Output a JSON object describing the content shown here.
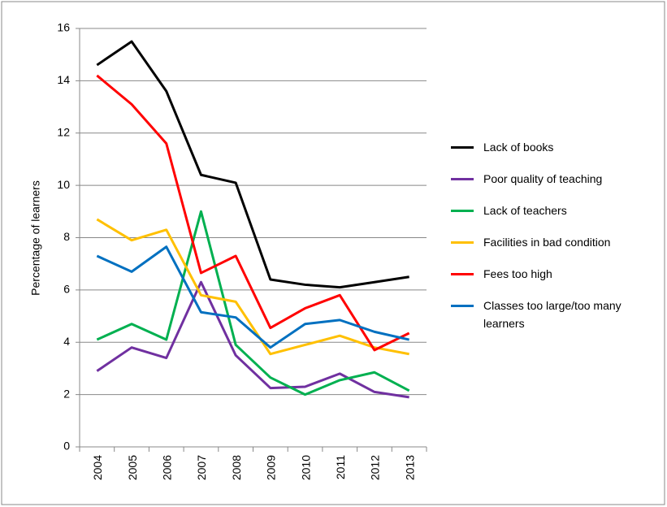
{
  "chart_data": {
    "type": "line",
    "y_axis_label": "Percentage of learners",
    "categories": [
      "2004",
      "2005",
      "2006",
      "2007",
      "2008",
      "2009",
      "2010",
      "2011",
      "2012",
      "2013"
    ],
    "ylim": [
      0,
      16
    ],
    "yticks": [
      0,
      2,
      4,
      6,
      8,
      10,
      12,
      14,
      16
    ],
    "grid": true,
    "legend": "right",
    "series": [
      {
        "name": "Lack of books",
        "color": "#000000",
        "values": [
          14.6,
          15.5,
          13.6,
          10.4,
          10.1,
          6.4,
          6.2,
          6.1,
          6.3,
          6.5
        ]
      },
      {
        "name": "Poor quality of teaching",
        "color": "#7030a0",
        "values": [
          2.9,
          3.8,
          3.4,
          6.3,
          3.5,
          2.25,
          2.3,
          2.8,
          2.1,
          1.9
        ]
      },
      {
        "name": "Lack of teachers",
        "color": "#00b050",
        "values": [
          4.1,
          4.7,
          4.1,
          9.0,
          3.9,
          2.65,
          2.0,
          2.55,
          2.85,
          2.15
        ]
      },
      {
        "name": "Facilities in bad condition",
        "color": "#ffc000",
        "values": [
          8.7,
          7.9,
          8.3,
          5.8,
          5.55,
          3.55,
          3.9,
          4.25,
          3.8,
          3.55
        ]
      },
      {
        "name": "Fees too high",
        "color": "#ff0000",
        "values": [
          14.2,
          13.1,
          11.6,
          6.65,
          7.3,
          4.55,
          5.3,
          5.8,
          3.7,
          4.35
        ]
      },
      {
        "name": "Classes too large/too many learners",
        "color": "#0070c0",
        "values": [
          7.3,
          6.7,
          7.65,
          5.15,
          4.95,
          3.8,
          4.7,
          4.85,
          4.4,
          4.1
        ]
      }
    ]
  }
}
